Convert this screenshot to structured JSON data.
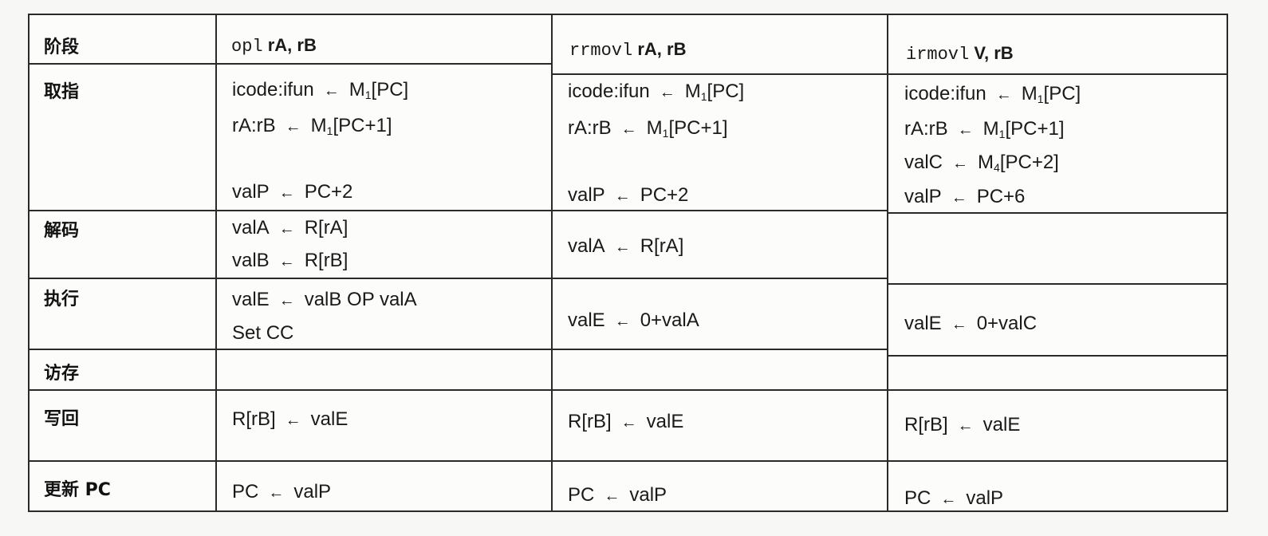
{
  "header": {
    "stage_label": "阶段",
    "col1": {
      "mnemonic": "opl",
      "operands": "rA, rB"
    },
    "col2": {
      "mnemonic": "rrmovl",
      "operands": "rA, rB"
    },
    "col3": {
      "mnemonic": "irmovl",
      "operands": "V, rB"
    }
  },
  "arrow": "←",
  "stages": {
    "fetch": "取指",
    "decode": "解码",
    "execute": "执行",
    "memory": "访存",
    "writeback": "写回",
    "pc_update": "更新 PC"
  },
  "fetch": {
    "col1": {
      "l1": {
        "lhs": "icode:ifun",
        "rhs": "M",
        "sub": "1",
        "rhs2": "[PC]"
      },
      "l2": {
        "lhs": "rA:rB",
        "rhs": "M",
        "sub": "1",
        "rhs2": "[PC+1]"
      },
      "l4": {
        "lhs": "valP",
        "rhs": "PC+2"
      }
    },
    "col2": {
      "l1": {
        "lhs": "icode:ifun",
        "rhs": "M",
        "sub": "1",
        "rhs2": "[PC]"
      },
      "l2": {
        "lhs": "rA:rB",
        "rhs": "M",
        "sub": "1",
        "rhs2": "[PC+1]"
      },
      "l4": {
        "lhs": "valP",
        "rhs": "PC+2"
      }
    },
    "col3": {
      "l1": {
        "lhs": "icode:ifun",
        "rhs": "M",
        "sub": "1",
        "rhs2": "[PC]"
      },
      "l2": {
        "lhs": "rA:rB",
        "rhs": "M",
        "sub": "1",
        "rhs2": "[PC+1]"
      },
      "l3": {
        "lhs": "valC",
        "rhs": "M",
        "sub": "4",
        "rhs2": "[PC+2]"
      },
      "l4": {
        "lhs": "valP",
        "rhs": "PC+6"
      }
    }
  },
  "decode": {
    "col1": {
      "l1": {
        "lhs": "valA",
        "rhs": "R[rA]"
      },
      "l2": {
        "lhs": "valB",
        "rhs": "R[rB]"
      }
    },
    "col2": {
      "l1": {
        "lhs": "valA",
        "rhs": "R[rA]"
      }
    }
  },
  "execute": {
    "col1": {
      "l1": {
        "lhs": "valE",
        "rhs": "valB OP valA"
      },
      "l2": "Set CC"
    },
    "col2": {
      "l1": {
        "lhs": "valE",
        "rhs": "0+valA"
      }
    },
    "col3": {
      "l1": {
        "lhs": "valE",
        "rhs": "0+valC"
      }
    }
  },
  "writeback": {
    "col1": {
      "lhs": "R[rB]",
      "rhs": "valE"
    },
    "col2": {
      "lhs": "R[rB]",
      "rhs": "valE"
    },
    "col3": {
      "lhs": "R[rB]",
      "rhs": "valE"
    }
  },
  "pc_update": {
    "col1": {
      "lhs": "PC",
      "rhs": "valP"
    },
    "col2": {
      "lhs": "PC",
      "rhs": "valP"
    },
    "col3": {
      "lhs": "PC",
      "rhs": "valP"
    }
  }
}
